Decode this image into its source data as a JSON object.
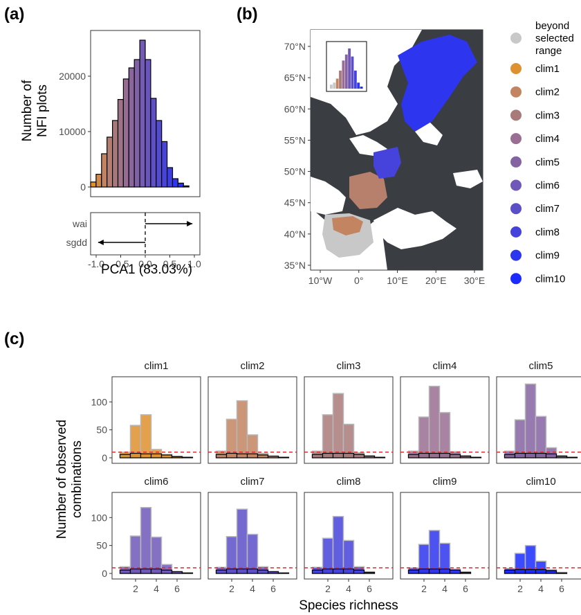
{
  "panel_labels": {
    "a": "(a)",
    "b": "(b)",
    "c": "(c)"
  },
  "colors": {
    "clim_palette": [
      "#DE912F",
      "#C38461",
      "#A97A7A",
      "#9A6E92",
      "#8563A2",
      "#6F58B8",
      "#5B4FC8",
      "#4543DB",
      "#2E35EE",
      "#1B2BFF"
    ],
    "beyond": "#C8C8C8",
    "map_land": "#3A3D42",
    "threshold": "#E4282C"
  },
  "legend": {
    "items": [
      "beyond selected range",
      "clim1",
      "clim2",
      "clim3",
      "clim4",
      "clim5",
      "clim6",
      "clim7",
      "clim8",
      "clim9",
      "clim10"
    ]
  },
  "chart_data": [
    {
      "id": "a-histogram",
      "type": "bar",
      "ylabel": "Number of NFI plots",
      "x": [
        -0.95,
        -0.85,
        -0.75,
        -0.65,
        -0.55,
        -0.45,
        -0.35,
        -0.25,
        -0.15,
        -0.05,
        0.05,
        0.15,
        0.25,
        0.35,
        0.45,
        0.55,
        0.65,
        0.75
      ],
      "values": [
        900,
        2300,
        6000,
        9000,
        12000,
        15800,
        19500,
        21500,
        23000,
        26500,
        23000,
        16000,
        12000,
        8200,
        3500,
        1500,
        700,
        200
      ],
      "bin_width": 0.1,
      "xlim": [
        -1,
        1
      ],
      "ylim": [
        0,
        27500
      ],
      "y_ticks": [
        "0",
        "10000",
        "20000"
      ],
      "y_tick_values": [
        0,
        10000,
        20000
      ]
    },
    {
      "id": "a-loadings",
      "type": "arrow",
      "xlabel": "PCA1 (83.03%)",
      "xlim": [
        -1,
        1
      ],
      "x_ticks": [
        "-1.0",
        "-0.5",
        "0.0",
        "0.5",
        "1.0"
      ],
      "x_tick_values": [
        -1,
        -0.5,
        0,
        0.5,
        1
      ],
      "vectors": [
        {
          "name": "wai",
          "value": 0.96
        },
        {
          "name": "sgdd",
          "value": -0.96
        }
      ]
    },
    {
      "id": "b-map",
      "type": "map",
      "lat_ticks": [
        "35°N",
        "40°N",
        "45°N",
        "50°N",
        "55°N",
        "60°N",
        "65°N",
        "70°N"
      ],
      "lat_values": [
        35,
        40,
        45,
        50,
        55,
        60,
        65,
        70
      ],
      "lon_ticks": [
        "10°W",
        "0°",
        "10°E",
        "20°E",
        "30°E"
      ],
      "lon_values": [
        -10,
        0,
        10,
        20,
        30
      ],
      "inset_values": [
        2,
        3,
        5,
        9,
        14,
        17,
        20,
        16,
        9,
        3,
        1
      ]
    },
    {
      "id": "c-facets",
      "type": "bar",
      "xlabel": "Species richness",
      "ylabel": "Number of observed combinations",
      "threshold": 10,
      "categories": [
        1,
        2,
        3,
        4,
        5,
        6,
        7
      ],
      "xlim": [
        0,
        8
      ],
      "ylim": [
        0,
        140
      ],
      "x_ticks": [
        "2",
        "4",
        "6"
      ],
      "x_tick_values": [
        2,
        4,
        6
      ],
      "y_ticks": [
        "0",
        "50",
        "100"
      ],
      "y_tick_values": [
        0,
        50,
        100
      ],
      "facets": [
        {
          "name": "clim1",
          "observed": [
            10,
            58,
            77,
            15,
            6,
            3,
            0
          ],
          "below": [
            6,
            8,
            7,
            7,
            5,
            2,
            1
          ]
        },
        {
          "name": "clim2",
          "observed": [
            12,
            69,
            102,
            41,
            8,
            3,
            0
          ],
          "below": [
            6,
            8,
            7,
            7,
            5,
            3,
            1
          ]
        },
        {
          "name": "clim3",
          "observed": [
            12,
            77,
            115,
            60,
            9,
            4,
            0
          ],
          "below": [
            6,
            8,
            8,
            8,
            6,
            3,
            1
          ]
        },
        {
          "name": "clim4",
          "observed": [
            12,
            73,
            128,
            81,
            11,
            4,
            0
          ],
          "below": [
            6,
            8,
            8,
            8,
            6,
            3,
            1
          ]
        },
        {
          "name": "clim5",
          "observed": [
            12,
            68,
            132,
            74,
            18,
            4,
            0
          ],
          "below": [
            6,
            8,
            8,
            8,
            7,
            3,
            1
          ]
        },
        {
          "name": "clim6",
          "observed": [
            12,
            67,
            118,
            65,
            16,
            4,
            0
          ],
          "below": [
            6,
            8,
            8,
            8,
            6,
            3,
            1
          ]
        },
        {
          "name": "clim7",
          "observed": [
            11,
            66,
            115,
            70,
            12,
            4,
            0
          ],
          "below": [
            6,
            8,
            8,
            8,
            6,
            3,
            1
          ]
        },
        {
          "name": "clim8",
          "observed": [
            11,
            63,
            102,
            59,
            12,
            3,
            0
          ],
          "below": [
            6,
            8,
            8,
            8,
            6,
            2,
            0
          ]
        },
        {
          "name": "clim9",
          "observed": [
            10,
            52,
            77,
            54,
            8,
            3,
            0
          ],
          "below": [
            6,
            8,
            8,
            8,
            6,
            2,
            0
          ]
        },
        {
          "name": "clim10",
          "observed": [
            9,
            36,
            50,
            22,
            7,
            2,
            0
          ],
          "below": [
            6,
            7,
            7,
            7,
            5,
            1,
            0
          ]
        }
      ]
    }
  ]
}
